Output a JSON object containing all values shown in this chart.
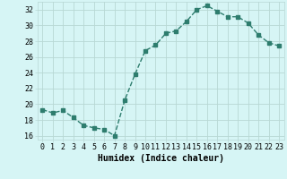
{
  "x": [
    0,
    1,
    2,
    3,
    4,
    5,
    6,
    7,
    8,
    9,
    10,
    11,
    12,
    13,
    14,
    15,
    16,
    17,
    18,
    19,
    20,
    21,
    22,
    23
  ],
  "y": [
    19.3,
    18.9,
    19.2,
    18.3,
    17.3,
    17.0,
    16.8,
    16.0,
    20.5,
    23.8,
    26.8,
    27.5,
    29.0,
    29.3,
    30.5,
    32.0,
    32.5,
    31.8,
    31.1,
    31.1,
    30.3,
    28.8,
    27.8,
    27.4
  ],
  "line_color": "#2e7d6e",
  "marker": "s",
  "marker_size": 2.5,
  "bg_color": "#d6f5f5",
  "grid_color": "#b8d8d4",
  "xlabel": "Humidex (Indice chaleur)",
  "ylim": [
    15.5,
    33.0
  ],
  "xlim": [
    -0.5,
    23.5
  ],
  "yticks": [
    16,
    18,
    20,
    22,
    24,
    26,
    28,
    30,
    32
  ],
  "xticks": [
    0,
    1,
    2,
    3,
    4,
    5,
    6,
    7,
    8,
    9,
    10,
    11,
    12,
    13,
    14,
    15,
    16,
    17,
    18,
    19,
    20,
    21,
    22,
    23
  ],
  "xlabel_fontsize": 7,
  "tick_fontsize": 6,
  "line_width": 1.0
}
